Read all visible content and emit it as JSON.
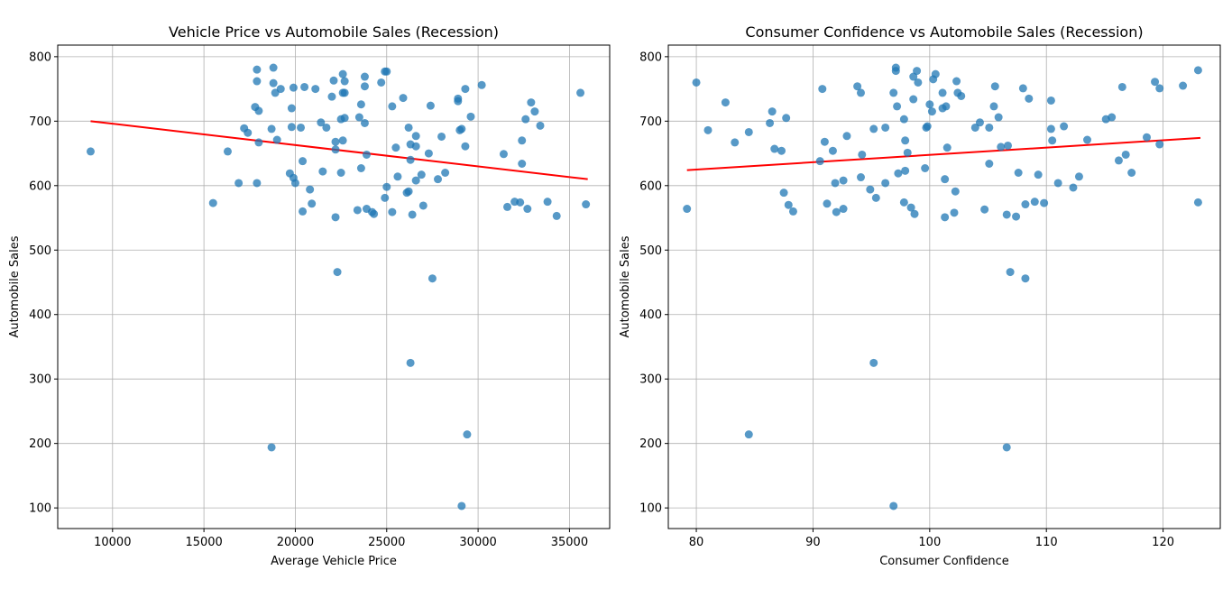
{
  "chart_data": [
    {
      "type": "scatter",
      "title": "Vehicle Price vs Automobile Sales (Recession)",
      "xlabel": "Average Vehicle Price",
      "ylabel": "Automobile Sales",
      "xlim": [
        7000,
        37200
      ],
      "ylim": [
        68,
        818
      ],
      "xticks": [
        10000,
        15000,
        20000,
        25000,
        30000,
        35000
      ],
      "yticks": [
        100,
        200,
        300,
        400,
        500,
        600,
        700,
        800
      ],
      "grid": true,
      "point_color": "#1f77b4",
      "trend_color": "#ff0000",
      "trendline": {
        "x": [
          8800,
          36000
        ],
        "y": [
          700,
          610
        ]
      },
      "points": [
        {
          "x": 8800,
          "y": 653
        },
        {
          "x": 15500,
          "y": 573
        },
        {
          "x": 16300,
          "y": 653
        },
        {
          "x": 16900,
          "y": 604
        },
        {
          "x": 17200,
          "y": 689
        },
        {
          "x": 17400,
          "y": 682
        },
        {
          "x": 17800,
          "y": 722
        },
        {
          "x": 17900,
          "y": 762
        },
        {
          "x": 17900,
          "y": 780
        },
        {
          "x": 18000,
          "y": 716
        },
        {
          "x": 17900,
          "y": 604
        },
        {
          "x": 18000,
          "y": 667
        },
        {
          "x": 18700,
          "y": 688
        },
        {
          "x": 18800,
          "y": 783
        },
        {
          "x": 18800,
          "y": 759
        },
        {
          "x": 18900,
          "y": 744
        },
        {
          "x": 19000,
          "y": 671
        },
        {
          "x": 19200,
          "y": 750
        },
        {
          "x": 19700,
          "y": 619
        },
        {
          "x": 19800,
          "y": 720
        },
        {
          "x": 19800,
          "y": 691
        },
        {
          "x": 19900,
          "y": 752
        },
        {
          "x": 19900,
          "y": 612
        },
        {
          "x": 20000,
          "y": 604
        },
        {
          "x": 20300,
          "y": 690
        },
        {
          "x": 20400,
          "y": 560
        },
        {
          "x": 20400,
          "y": 638
        },
        {
          "x": 20500,
          "y": 753
        },
        {
          "x": 20800,
          "y": 594
        },
        {
          "x": 20900,
          "y": 572
        },
        {
          "x": 21100,
          "y": 750
        },
        {
          "x": 21400,
          "y": 698
        },
        {
          "x": 21500,
          "y": 622
        },
        {
          "x": 21700,
          "y": 690
        },
        {
          "x": 22000,
          "y": 738
        },
        {
          "x": 22100,
          "y": 763
        },
        {
          "x": 22200,
          "y": 668
        },
        {
          "x": 22200,
          "y": 656
        },
        {
          "x": 22200,
          "y": 551
        },
        {
          "x": 22300,
          "y": 466
        },
        {
          "x": 22500,
          "y": 703
        },
        {
          "x": 22500,
          "y": 620
        },
        {
          "x": 22600,
          "y": 670
        },
        {
          "x": 22600,
          "y": 744
        },
        {
          "x": 22600,
          "y": 773
        },
        {
          "x": 22700,
          "y": 705
        },
        {
          "x": 22700,
          "y": 762
        },
        {
          "x": 22700,
          "y": 744
        },
        {
          "x": 23400,
          "y": 562
        },
        {
          "x": 23500,
          "y": 706
        },
        {
          "x": 23600,
          "y": 726
        },
        {
          "x": 23600,
          "y": 627
        },
        {
          "x": 23800,
          "y": 697
        },
        {
          "x": 23800,
          "y": 769
        },
        {
          "x": 23800,
          "y": 754
        },
        {
          "x": 23900,
          "y": 648
        },
        {
          "x": 23900,
          "y": 564
        },
        {
          "x": 24200,
          "y": 559
        },
        {
          "x": 24300,
          "y": 556
        },
        {
          "x": 24700,
          "y": 760
        },
        {
          "x": 24900,
          "y": 777
        },
        {
          "x": 25000,
          "y": 777
        },
        {
          "x": 24900,
          "y": 581
        },
        {
          "x": 25000,
          "y": 598
        },
        {
          "x": 25300,
          "y": 723
        },
        {
          "x": 25300,
          "y": 559
        },
        {
          "x": 25500,
          "y": 659
        },
        {
          "x": 25600,
          "y": 614
        },
        {
          "x": 25900,
          "y": 736
        },
        {
          "x": 26100,
          "y": 589
        },
        {
          "x": 26200,
          "y": 591
        },
        {
          "x": 26200,
          "y": 690
        },
        {
          "x": 26300,
          "y": 664
        },
        {
          "x": 26300,
          "y": 640
        },
        {
          "x": 26400,
          "y": 555
        },
        {
          "x": 26300,
          "y": 325
        },
        {
          "x": 26600,
          "y": 677
        },
        {
          "x": 26600,
          "y": 661
        },
        {
          "x": 26600,
          "y": 608
        },
        {
          "x": 26900,
          "y": 617
        },
        {
          "x": 27000,
          "y": 569
        },
        {
          "x": 27300,
          "y": 650
        },
        {
          "x": 27400,
          "y": 724
        },
        {
          "x": 27500,
          "y": 456
        },
        {
          "x": 27800,
          "y": 610
        },
        {
          "x": 28000,
          "y": 676
        },
        {
          "x": 28200,
          "y": 620
        },
        {
          "x": 28900,
          "y": 735
        },
        {
          "x": 28900,
          "y": 731
        },
        {
          "x": 29000,
          "y": 686
        },
        {
          "x": 29100,
          "y": 688
        },
        {
          "x": 29100,
          "y": 103
        },
        {
          "x": 29300,
          "y": 750
        },
        {
          "x": 29300,
          "y": 661
        },
        {
          "x": 29400,
          "y": 214
        },
        {
          "x": 29600,
          "y": 707
        },
        {
          "x": 30200,
          "y": 756
        },
        {
          "x": 31400,
          "y": 649
        },
        {
          "x": 31600,
          "y": 567
        },
        {
          "x": 32000,
          "y": 575
        },
        {
          "x": 32300,
          "y": 574
        },
        {
          "x": 32400,
          "y": 634
        },
        {
          "x": 32400,
          "y": 670
        },
        {
          "x": 32600,
          "y": 703
        },
        {
          "x": 32700,
          "y": 564
        },
        {
          "x": 32900,
          "y": 729
        },
        {
          "x": 33100,
          "y": 715
        },
        {
          "x": 33400,
          "y": 693
        },
        {
          "x": 33800,
          "y": 575
        },
        {
          "x": 34300,
          "y": 553
        },
        {
          "x": 35600,
          "y": 744
        },
        {
          "x": 35900,
          "y": 571
        },
        {
          "x": 18700,
          "y": 194
        }
      ]
    },
    {
      "type": "scatter",
      "title": "Consumer Confidence vs Automobile Sales (Recession)",
      "xlabel": "Consumer Confidence",
      "ylabel": "Automobile Sales",
      "xlim": [
        77.6,
        124.9
      ],
      "ylim": [
        68,
        818
      ],
      "xticks": [
        80,
        90,
        100,
        110,
        120
      ],
      "yticks": [
        100,
        200,
        300,
        400,
        500,
        600,
        700,
        800
      ],
      "grid": true,
      "point_color": "#1f77b4",
      "trend_color": "#ff0000",
      "trendline": {
        "x": [
          79.2,
          123.2
        ],
        "y": [
          624,
          674
        ]
      },
      "points": [
        {
          "x": 79.2,
          "y": 564
        },
        {
          "x": 80.0,
          "y": 760
        },
        {
          "x": 81.0,
          "y": 686
        },
        {
          "x": 82.5,
          "y": 729
        },
        {
          "x": 83.3,
          "y": 667
        },
        {
          "x": 84.5,
          "y": 683
        },
        {
          "x": 84.5,
          "y": 214
        },
        {
          "x": 86.3,
          "y": 697
        },
        {
          "x": 86.5,
          "y": 715
        },
        {
          "x": 86.7,
          "y": 657
        },
        {
          "x": 87.3,
          "y": 654
        },
        {
          "x": 87.5,
          "y": 589
        },
        {
          "x": 87.7,
          "y": 705
        },
        {
          "x": 87.9,
          "y": 570
        },
        {
          "x": 88.3,
          "y": 560
        },
        {
          "x": 90.6,
          "y": 638
        },
        {
          "x": 90.8,
          "y": 750
        },
        {
          "x": 91.0,
          "y": 668
        },
        {
          "x": 91.2,
          "y": 572
        },
        {
          "x": 91.7,
          "y": 654
        },
        {
          "x": 91.9,
          "y": 604
        },
        {
          "x": 92.0,
          "y": 559
        },
        {
          "x": 92.6,
          "y": 608
        },
        {
          "x": 92.6,
          "y": 564
        },
        {
          "x": 92.9,
          "y": 677
        },
        {
          "x": 93.8,
          "y": 754
        },
        {
          "x": 94.1,
          "y": 744
        },
        {
          "x": 94.1,
          "y": 613
        },
        {
          "x": 94.2,
          "y": 648
        },
        {
          "x": 94.9,
          "y": 594
        },
        {
          "x": 95.2,
          "y": 688
        },
        {
          "x": 95.2,
          "y": 325
        },
        {
          "x": 95.4,
          "y": 581
        },
        {
          "x": 96.2,
          "y": 604
        },
        {
          "x": 96.2,
          "y": 690
        },
        {
          "x": 96.9,
          "y": 744
        },
        {
          "x": 96.9,
          "y": 103
        },
        {
          "x": 97.1,
          "y": 783
        },
        {
          "x": 97.1,
          "y": 778
        },
        {
          "x": 97.2,
          "y": 723
        },
        {
          "x": 97.3,
          "y": 619
        },
        {
          "x": 97.8,
          "y": 703
        },
        {
          "x": 97.8,
          "y": 574
        },
        {
          "x": 97.9,
          "y": 670
        },
        {
          "x": 97.9,
          "y": 623
        },
        {
          "x": 98.1,
          "y": 651
        },
        {
          "x": 98.4,
          "y": 566
        },
        {
          "x": 98.6,
          "y": 734
        },
        {
          "x": 98.6,
          "y": 769
        },
        {
          "x": 98.7,
          "y": 556
        },
        {
          "x": 98.9,
          "y": 778
        },
        {
          "x": 99.0,
          "y": 760
        },
        {
          "x": 99.6,
          "y": 627
        },
        {
          "x": 99.7,
          "y": 690
        },
        {
          "x": 99.8,
          "y": 692
        },
        {
          "x": 100.0,
          "y": 726
        },
        {
          "x": 100.2,
          "y": 715
        },
        {
          "x": 100.3,
          "y": 765
        },
        {
          "x": 100.5,
          "y": 773
        },
        {
          "x": 101.1,
          "y": 744
        },
        {
          "x": 101.1,
          "y": 720
        },
        {
          "x": 101.3,
          "y": 610
        },
        {
          "x": 101.3,
          "y": 551
        },
        {
          "x": 101.4,
          "y": 723
        },
        {
          "x": 101.5,
          "y": 659
        },
        {
          "x": 102.1,
          "y": 558
        },
        {
          "x": 102.2,
          "y": 591
        },
        {
          "x": 102.3,
          "y": 762
        },
        {
          "x": 102.4,
          "y": 744
        },
        {
          "x": 102.7,
          "y": 739
        },
        {
          "x": 103.9,
          "y": 690
        },
        {
          "x": 104.3,
          "y": 698
        },
        {
          "x": 104.7,
          "y": 563
        },
        {
          "x": 105.1,
          "y": 690
        },
        {
          "x": 105.1,
          "y": 634
        },
        {
          "x": 105.5,
          "y": 723
        },
        {
          "x": 105.6,
          "y": 754
        },
        {
          "x": 105.9,
          "y": 706
        },
        {
          "x": 106.1,
          "y": 660
        },
        {
          "x": 106.6,
          "y": 555
        },
        {
          "x": 106.6,
          "y": 194
        },
        {
          "x": 106.7,
          "y": 662
        },
        {
          "x": 106.9,
          "y": 466
        },
        {
          "x": 107.4,
          "y": 552
        },
        {
          "x": 107.6,
          "y": 620
        },
        {
          "x": 108.0,
          "y": 751
        },
        {
          "x": 108.2,
          "y": 571
        },
        {
          "x": 108.2,
          "y": 456
        },
        {
          "x": 108.5,
          "y": 735
        },
        {
          "x": 109.0,
          "y": 575
        },
        {
          "x": 109.3,
          "y": 617
        },
        {
          "x": 109.8,
          "y": 573
        },
        {
          "x": 110.4,
          "y": 688
        },
        {
          "x": 110.4,
          "y": 732
        },
        {
          "x": 110.5,
          "y": 670
        },
        {
          "x": 111.0,
          "y": 604
        },
        {
          "x": 111.5,
          "y": 692
        },
        {
          "x": 112.3,
          "y": 597
        },
        {
          "x": 112.8,
          "y": 614
        },
        {
          "x": 113.5,
          "y": 671
        },
        {
          "x": 115.1,
          "y": 703
        },
        {
          "x": 115.6,
          "y": 706
        },
        {
          "x": 116.2,
          "y": 639
        },
        {
          "x": 116.5,
          "y": 753
        },
        {
          "x": 116.8,
          "y": 648
        },
        {
          "x": 117.3,
          "y": 620
        },
        {
          "x": 118.6,
          "y": 675
        },
        {
          "x": 119.3,
          "y": 761
        },
        {
          "x": 119.7,
          "y": 751
        },
        {
          "x": 119.7,
          "y": 664
        },
        {
          "x": 121.7,
          "y": 755
        },
        {
          "x": 123.0,
          "y": 779
        },
        {
          "x": 123.0,
          "y": 574
        }
      ]
    }
  ]
}
